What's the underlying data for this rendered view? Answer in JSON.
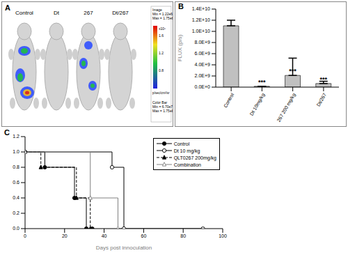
{
  "panel_A": {
    "label": "A",
    "images": [
      "Control",
      "Dt",
      "267",
      "Dt/267"
    ],
    "color_bar": {
      "image_text": [
        "Image",
        "Min = 1.22e6",
        "Max = 1.75e8"
      ],
      "ticks": [
        "1.6",
        "1.2",
        "0.8"
      ],
      "scale": "x10⁸",
      "units": "p/sec/cm²/sr",
      "color_bar_text": [
        "Color Bar",
        "Min = 6.70e7",
        "Max = 1.75e8"
      ]
    }
  },
  "chart_data": [
    {
      "panel": "B",
      "type": "bar",
      "categories": [
        "Control",
        "Dt 10mg/kg",
        "267 200 mg/kg",
        "Dt/267"
      ],
      "values": [
        11000000000,
        150000000,
        2100000000,
        650000000
      ],
      "errors": [
        1000000000,
        0,
        3100000000,
        400000000
      ],
      "annotations": [
        null,
        "***",
        "***",
        "***"
      ],
      "y_label": "FLUX (p/s)",
      "color": "#c0c0c0",
      "ylim": [
        0,
        14000000000
      ],
      "yticks": [
        {
          "value": 0,
          "label": "0.0E+0"
        },
        {
          "value": 2000000000,
          "label": "2.0E+9"
        },
        {
          "value": 4000000000,
          "label": "4.0E+9"
        },
        {
          "value": 6000000000,
          "label": "6.0E+9"
        },
        {
          "value": 8000000000,
          "label": "8.0E+9"
        },
        {
          "value": 10000000000,
          "label": "1.0E+10"
        },
        {
          "value": 12000000000,
          "label": "1.2E+10"
        },
        {
          "value": 14000000000,
          "label": "1.4E+10"
        }
      ]
    },
    {
      "panel": "C",
      "type": "line",
      "x_label": "Days post innoculation",
      "xlim": [
        0,
        100
      ],
      "xticks": [
        0,
        20,
        40,
        60,
        80,
        100
      ],
      "ylim": [
        0,
        1.2
      ],
      "yticks": [
        {
          "value": 0,
          "label": "0.0"
        },
        {
          "value": 0.2,
          "label": "0.2"
        },
        {
          "value": 0.4,
          "label": "0.4"
        },
        {
          "value": 0.6,
          "label": "0.6"
        },
        {
          "value": 0.8,
          "label": "0.8"
        },
        {
          "value": 1,
          "label": "1.0"
        },
        {
          "value": 1.2,
          "label": "1.2"
        }
      ],
      "legend": "upper right",
      "series": [
        {
          "name": "Control",
          "color": "#000000",
          "marker": "filled_circle",
          "line_style": "solid",
          "x": [
            0,
            10,
            25,
            31,
            34
          ],
          "values": [
            1,
            0.8,
            0.4,
            0,
            0
          ]
        },
        {
          "name": "Dt 10 mg/kg",
          "color": "#000000",
          "marker": "open_circle",
          "line_style": "solid",
          "x": [
            0,
            44,
            50,
            90
          ],
          "values": [
            1,
            0.8,
            0,
            0
          ]
        },
        {
          "name": "QLT0267 200mg/kg",
          "color": "#000000",
          "marker": "filled_triangle",
          "line_style": "dashed",
          "x": [
            0,
            8,
            26,
            33
          ],
          "values": [
            1,
            0.8,
            0.4,
            0
          ]
        },
        {
          "name": "Combination",
          "color": "#808080",
          "marker": "open_triangle",
          "line_style": "solid",
          "x": [
            0,
            33,
            47,
            90
          ],
          "values": [
            1,
            0.4,
            0,
            0
          ]
        }
      ]
    }
  ]
}
